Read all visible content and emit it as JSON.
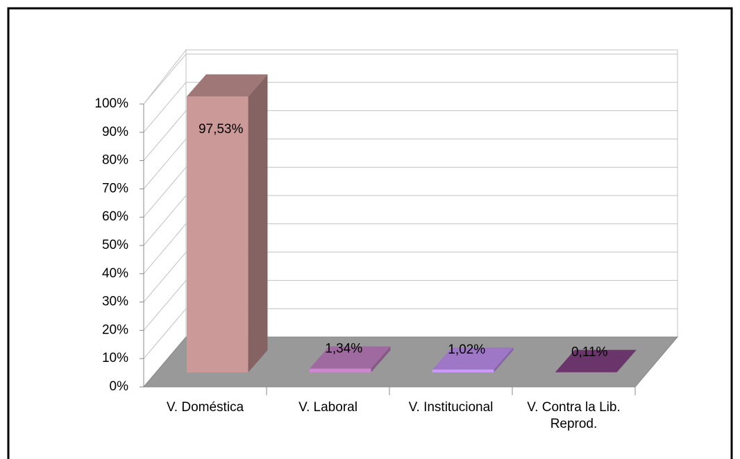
{
  "chart_data": {
    "type": "bar3d",
    "categories": [
      "V. Doméstica",
      "V. Laboral",
      "V. Institucional",
      "V. Contra la Lib. Reprod."
    ],
    "values": [
      97.53,
      1.34,
      1.02,
      0.11
    ],
    "value_labels": [
      "97,53%",
      "1,34%",
      "1,02%",
      "0,11%"
    ],
    "colors": [
      "#cc9999",
      "#cc88cc",
      "#cc99ff",
      "#884488"
    ],
    "ylim": [
      0,
      100
    ],
    "yticks": [
      {
        "value": 0,
        "label": "0%"
      },
      {
        "value": 10,
        "label": "10%"
      },
      {
        "value": 20,
        "label": "20%"
      },
      {
        "value": 30,
        "label": "30%"
      },
      {
        "value": 40,
        "label": "40%"
      },
      {
        "value": 50,
        "label": "50%"
      },
      {
        "value": 60,
        "label": "60%"
      },
      {
        "value": 70,
        "label": "70%"
      },
      {
        "value": 80,
        "label": "80%"
      },
      {
        "value": 90,
        "label": "90%"
      },
      {
        "value": 100,
        "label": "100%"
      }
    ],
    "grid": true
  }
}
